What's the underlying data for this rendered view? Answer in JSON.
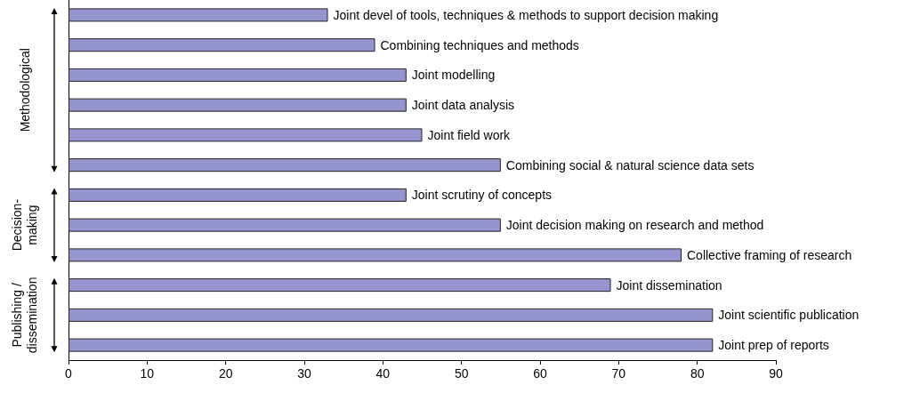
{
  "chart_data": {
    "type": "bar",
    "orientation": "horizontal",
    "categories": [
      "Joint devel of tools, techniques & methods to support decision making",
      "Combining techniques and methods",
      "Joint modelling",
      "Joint data analysis",
      "Joint field work",
      "Combining social & natural science data sets",
      "Joint scrutiny of concepts",
      "Joint decision making on research and method",
      "Collective framing of research",
      "Joint dissemination",
      "Joint scientific publication",
      "Joint prep of reports"
    ],
    "values": [
      33,
      39,
      43,
      43,
      45,
      55,
      43,
      55,
      78,
      69,
      82,
      82
    ],
    "color": "#9795cf",
    "xlim": [
      0,
      90
    ],
    "xticks": [
      0,
      10,
      20,
      30,
      40,
      50,
      60,
      70,
      80,
      90
    ],
    "annotations": [
      "Methodological",
      "Decision-\nmaking",
      "Publishing /\ndissemination"
    ],
    "tick_labels": "x"
  }
}
